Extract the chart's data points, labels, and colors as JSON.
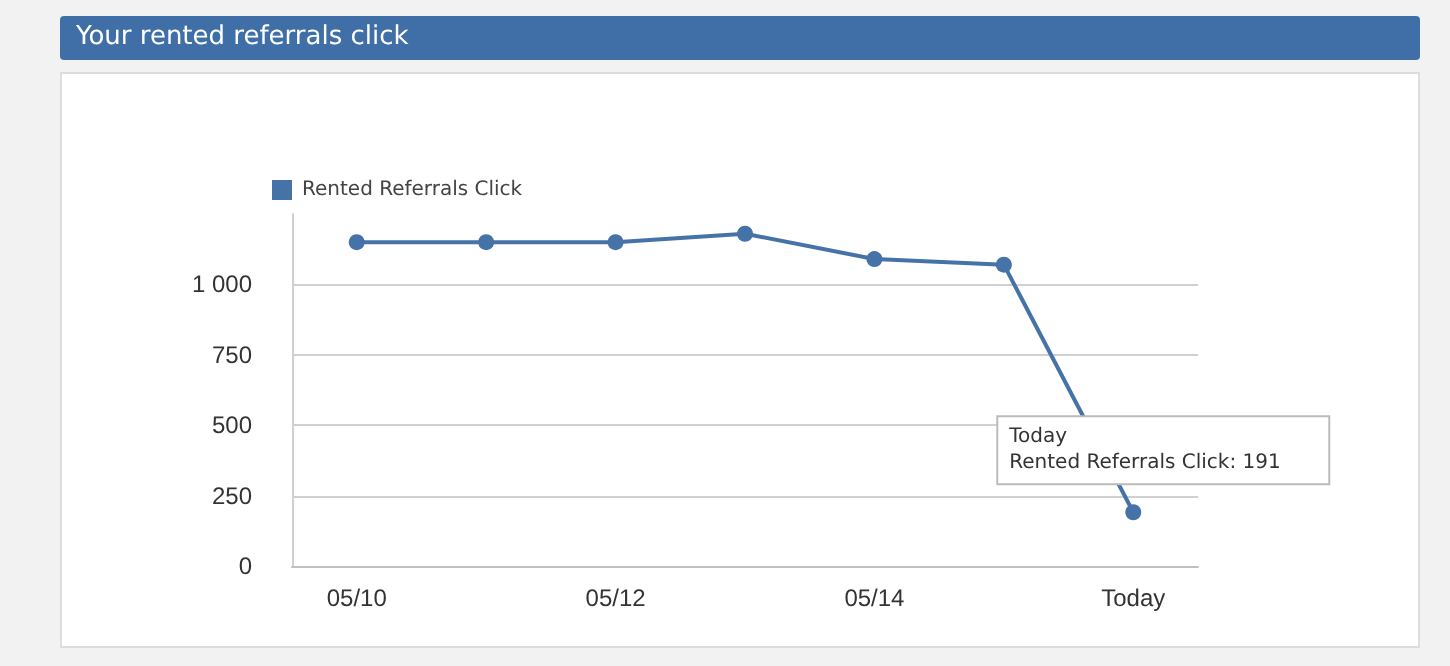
{
  "chart_data": {
    "type": "line",
    "title": "Your rented referrals click",
    "categories": [
      "05/10",
      null,
      "05/12",
      null,
      "05/14",
      null,
      "Today"
    ],
    "series": [
      {
        "name": "Rented Referrals Click",
        "color": "#4572a7",
        "values": [
          1150,
          1150,
          1150,
          1180,
          1090,
          1070,
          191
        ]
      }
    ],
    "ylim": [
      0,
      1250
    ],
    "yticks": [
      0,
      {
        "value": 250,
        "label": "250"
      },
      {
        "value": 500,
        "label": "500"
      },
      {
        "value": 750,
        "label": "750"
      },
      {
        "value": 1000,
        "label": "1 000"
      }
    ],
    "grid": "y",
    "legend": "top left",
    "marker": "circle",
    "line_style": "solid",
    "annotations": [
      {
        "text": "Today\nRented Referrals Click: 191",
        "x": "Today",
        "y": 191
      }
    ]
  }
}
